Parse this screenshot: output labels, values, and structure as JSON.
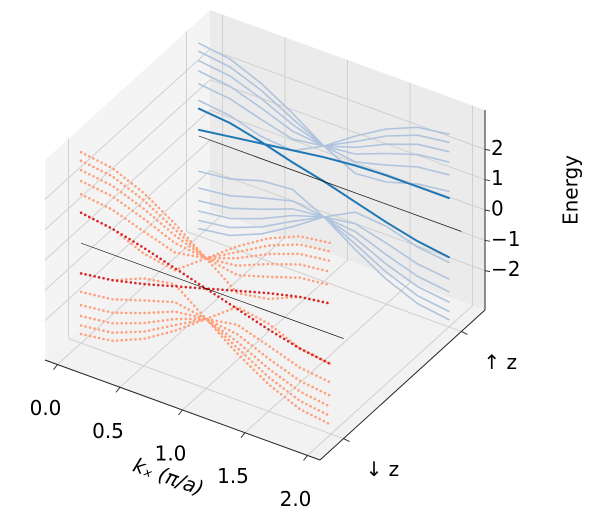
{
  "chart_data": {
    "type": "line3d",
    "xlabel": "kₓ (π/a)",
    "zlabel": "Energy",
    "x": [
      0,
      0.25,
      0.5,
      0.75,
      1,
      1.25,
      1.5,
      1.75,
      2
    ],
    "xlim": [
      -0.1,
      2.1
    ],
    "xticks": [
      {
        "value": 0,
        "label": "0.0"
      },
      0.5,
      {
        "value": 1,
        "label": "1.0"
      },
      1.5,
      {
        "value": 2,
        "label": "2.0"
      }
    ],
    "ylim": [
      -0.2,
      1.2
    ],
    "yticks": [
      {
        "value": 0,
        "label": "↓ z"
      },
      {
        "value": 1,
        "label": "↑ z"
      }
    ],
    "zlim": [
      -3.3,
      3.3
    ],
    "zticks": [
      {
        "value": -2,
        "label": "−2"
      },
      {
        "value": -1,
        "label": "−1"
      },
      0,
      1,
      2
    ],
    "zero_line": 0,
    "grid": true,
    "series": [
      {
        "y": 1,
        "style": "solid",
        "color": "#b0c4de",
        "values": [
          3.06,
          2.91,
          2.48,
          1.87,
          1.17,
          0.64,
          0.73,
          1.04,
          1.17
        ]
      },
      {
        "y": 1,
        "style": "solid",
        "color": "#b0c4de",
        "values": [
          2.79,
          2.65,
          2.25,
          1.69,
          1.17,
          1.02,
          1.29,
          1.6,
          1.72
        ]
      },
      {
        "y": 1,
        "style": "solid",
        "color": "#b0c4de",
        "values": [
          2.48,
          2.35,
          1.98,
          1.5,
          1.17,
          1.28,
          1.67,
          2.01,
          2.14
        ]
      },
      {
        "y": 1,
        "style": "solid",
        "color": "#b0c4de",
        "values": [
          2.14,
          2.01,
          1.67,
          1.28,
          1.17,
          1.5,
          1.98,
          2.35,
          2.48
        ]
      },
      {
        "y": 1,
        "style": "solid",
        "color": "#b0c4de",
        "values": [
          1.72,
          1.6,
          1.29,
          1.02,
          1.17,
          1.69,
          2.25,
          2.65,
          2.79
        ]
      },
      {
        "y": 1,
        "style": "solid",
        "color": "#b0c4de",
        "values": [
          1.17,
          1.04,
          0.73,
          0.64,
          1.17,
          1.87,
          2.48,
          2.91,
          3.06
        ]
      },
      {
        "y": 1,
        "style": "solid",
        "color": "#b0c4de",
        "values": [
          -3.06,
          -2.91,
          -2.48,
          -1.87,
          -1.17,
          -0.64,
          -0.73,
          -1.04,
          -1.17
        ]
      },
      {
        "y": 1,
        "style": "solid",
        "color": "#b0c4de",
        "values": [
          -2.79,
          -2.65,
          -2.25,
          -1.69,
          -1.17,
          -1.02,
          -1.29,
          -1.6,
          -1.72
        ]
      },
      {
        "y": 1,
        "style": "solid",
        "color": "#b0c4de",
        "values": [
          -2.48,
          -2.35,
          -1.98,
          -1.5,
          -1.17,
          -1.28,
          -1.67,
          -2.01,
          -2.14
        ]
      },
      {
        "y": 1,
        "style": "solid",
        "color": "#b0c4de",
        "values": [
          -2.14,
          -2.01,
          -1.67,
          -1.28,
          -1.17,
          -1.5,
          -1.98,
          -2.35,
          -2.48
        ]
      },
      {
        "y": 1,
        "style": "solid",
        "color": "#b0c4de",
        "values": [
          -1.72,
          -1.6,
          -1.29,
          -1.02,
          -1.17,
          -1.69,
          -2.25,
          -2.65,
          -2.79
        ]
      },
      {
        "y": 1,
        "style": "solid",
        "color": "#b0c4de",
        "values": [
          -1.17,
          -1.04,
          -0.73,
          -0.64,
          -1.17,
          -1.87,
          -2.48,
          -2.91,
          -3.06
        ]
      },
      {
        "y": 1,
        "style": "solid",
        "color": "#1f77b4",
        "values": [
          0.9,
          0.8,
          0.55,
          0.25,
          0,
          -0.3,
          -0.6,
          -0.85,
          -1.0
        ]
      },
      {
        "y": 1,
        "style": "solid",
        "color": "#1f77b4",
        "values": [
          0.2,
          0.35,
          0.5,
          0.65,
          0.8,
          0.9,
          0.95,
          0.95,
          0.95
        ]
      },
      {
        "y": 0,
        "style": "dotted",
        "color": "#ffa07a",
        "values": [
          3,
          2.85,
          2.41,
          1.77,
          1,
          0.23,
          0.41,
          0.85,
          1
        ]
      },
      {
        "y": 0,
        "style": "dotted",
        "color": "#ffa07a",
        "values": [
          2.72,
          2.58,
          2.17,
          1.58,
          1,
          0.82,
          1.14,
          1.48,
          1.61
        ]
      },
      {
        "y": 0,
        "style": "dotted",
        "color": "#ffa07a",
        "values": [
          2.41,
          2.27,
          1.89,
          1.38,
          1,
          1.13,
          1.56,
          1.92,
          2.05
        ]
      },
      {
        "y": 0,
        "style": "dotted",
        "color": "#ffa07a",
        "values": [
          2.05,
          1.92,
          1.56,
          1.13,
          1,
          1.38,
          1.89,
          2.27,
          2.41
        ]
      },
      {
        "y": 0,
        "style": "dotted",
        "color": "#ffa07a",
        "values": [
          1.61,
          1.48,
          1.14,
          0.82,
          1,
          1.58,
          2.17,
          2.58,
          2.72
        ]
      },
      {
        "y": 0,
        "style": "dotted",
        "color": "#ffa07a",
        "values": [
          1,
          0.85,
          0.41,
          0.23,
          1,
          1.77,
          2.41,
          2.85,
          3
        ]
      },
      {
        "y": 0,
        "style": "dotted",
        "color": "#ffa07a",
        "values": [
          -3,
          -2.85,
          -2.41,
          -1.77,
          -1,
          -0.23,
          -0.41,
          -0.85,
          -1
        ]
      },
      {
        "y": 0,
        "style": "dotted",
        "color": "#ffa07a",
        "values": [
          -2.72,
          -2.58,
          -2.17,
          -1.58,
          -1,
          -0.82,
          -1.14,
          -1.48,
          -1.61
        ]
      },
      {
        "y": 0,
        "style": "dotted",
        "color": "#ffa07a",
        "values": [
          -2.41,
          -2.27,
          -1.89,
          -1.38,
          -1,
          -1.13,
          -1.56,
          -1.92,
          -2.05
        ]
      },
      {
        "y": 0,
        "style": "dotted",
        "color": "#ffa07a",
        "values": [
          -2.05,
          -1.92,
          -1.56,
          -1.13,
          -1,
          -1.38,
          -1.89,
          -2.27,
          -2.41
        ]
      },
      {
        "y": 0,
        "style": "dotted",
        "color": "#ffa07a",
        "values": [
          -1.61,
          -1.48,
          -1.14,
          -0.82,
          -1,
          -1.58,
          -2.17,
          -2.58,
          -2.72
        ]
      },
      {
        "y": 0,
        "style": "dotted",
        "color": "#ffa07a",
        "values": [
          -1,
          -0.85,
          -0.41,
          -0.23,
          -1,
          -1.77,
          -2.41,
          -2.85,
          -3
        ]
      },
      {
        "y": 0,
        "style": "dotted",
        "color": "#d62728",
        "values": [
          1,
          0.85,
          0.6,
          0.3,
          0,
          -0.3,
          -0.6,
          -0.85,
          -1
        ]
      },
      {
        "y": 0,
        "style": "dotted",
        "color": "#d62728",
        "values": [
          -1,
          -0.85,
          -0.6,
          -0.3,
          0,
          0.3,
          0.6,
          0.85,
          1
        ]
      }
    ]
  }
}
